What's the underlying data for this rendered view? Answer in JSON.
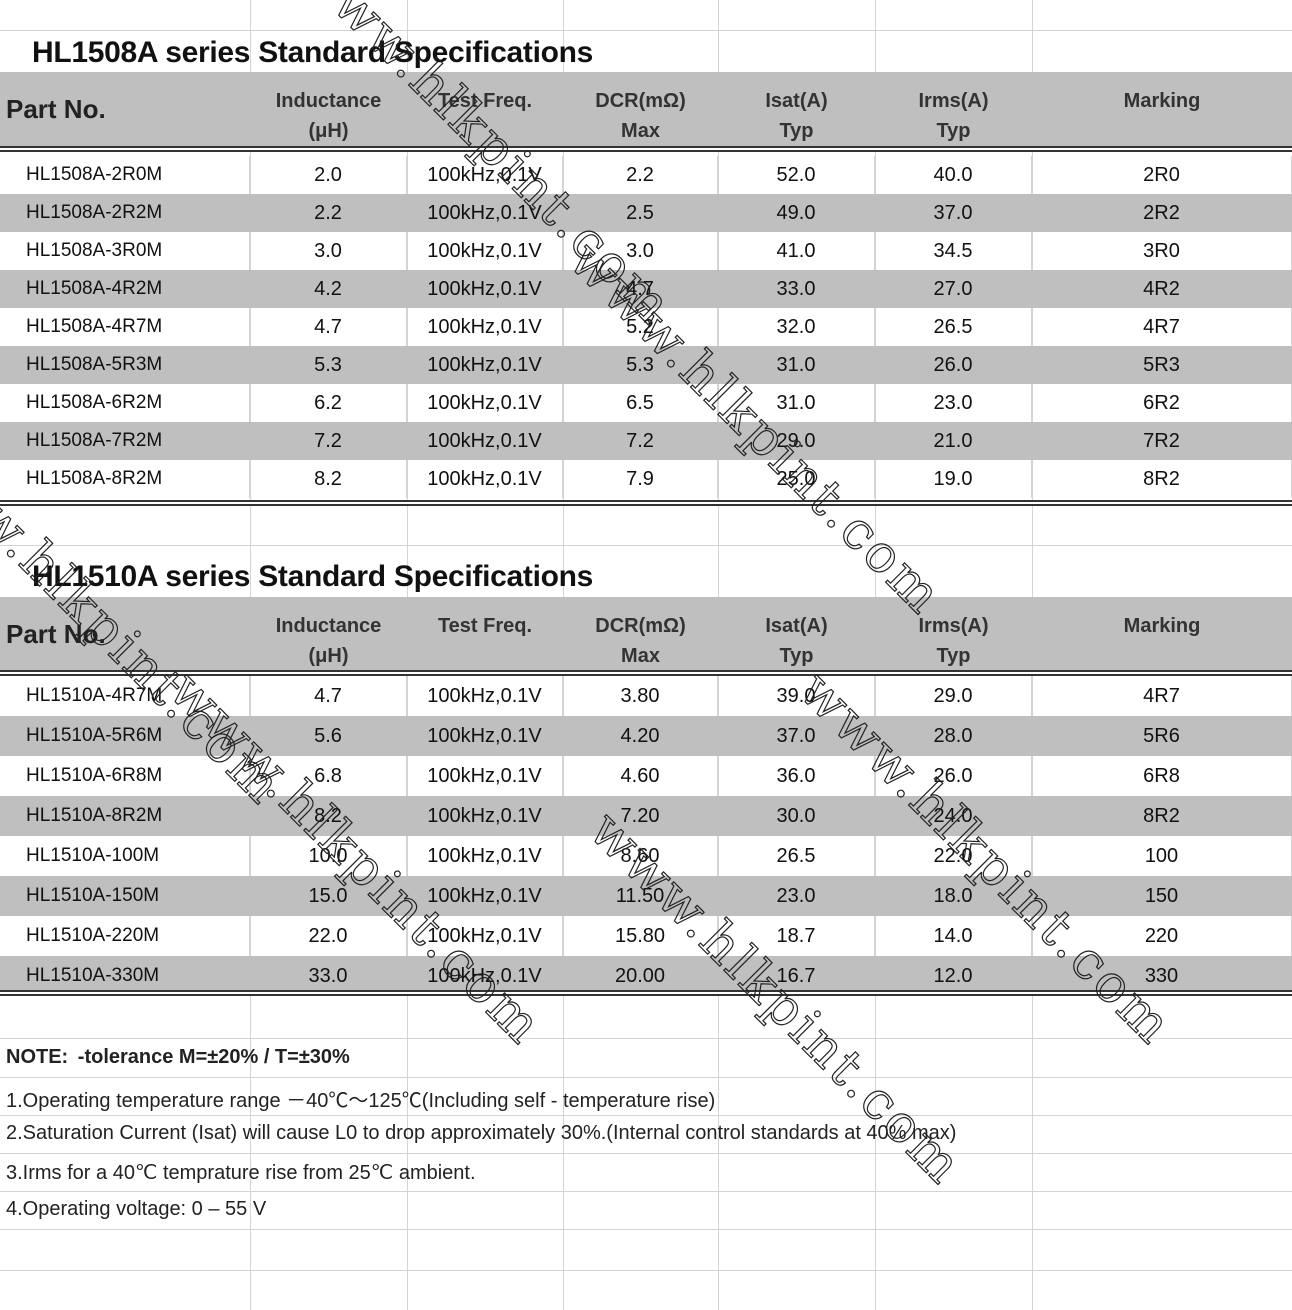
{
  "columns": [
    "Part No.",
    "Inductance\n(μH)",
    "Test Freq.",
    "DCR(mΩ)\nMax",
    "Isat(A)\nTyp",
    "Irms(A)\nTyp",
    "Marking"
  ],
  "tables": [
    {
      "title": "HL1508A series  Standard Specifications",
      "rows": [
        [
          "HL1508A-2R0M",
          "2.0",
          "100kHz,0.1V",
          "2.2",
          "52.0",
          "40.0",
          "2R0"
        ],
        [
          "HL1508A-2R2M",
          "2.2",
          "100kHz,0.1V",
          "2.5",
          "49.0",
          "37.0",
          "2R2"
        ],
        [
          "HL1508A-3R0M",
          "3.0",
          "100kHz,0.1V",
          "3.0",
          "41.0",
          "34.5",
          "3R0"
        ],
        [
          "HL1508A-4R2M",
          "4.2",
          "100kHz,0.1V",
          "4.7",
          "33.0",
          "27.0",
          "4R2"
        ],
        [
          "HL1508A-4R7M",
          "4.7",
          "100kHz,0.1V",
          "5.2",
          "32.0",
          "26.5",
          "4R7"
        ],
        [
          "HL1508A-5R3M",
          "5.3",
          "100kHz,0.1V",
          "5.3",
          "31.0",
          "26.0",
          "5R3"
        ],
        [
          "HL1508A-6R2M",
          "6.2",
          "100kHz,0.1V",
          "6.5",
          "31.0",
          "23.0",
          "6R2"
        ],
        [
          "HL1508A-7R2M",
          "7.2",
          "100kHz,0.1V",
          "7.2",
          "29.0",
          "21.0",
          "7R2"
        ],
        [
          "HL1508A-8R2M",
          "8.2",
          "100kHz,0.1V",
          "7.9",
          "25.0",
          "19.0",
          "8R2"
        ]
      ]
    },
    {
      "title": "HL1510A series  Standard Specifications",
      "rows": [
        [
          "HL1510A-4R7M",
          "4.7",
          "100kHz,0.1V",
          "3.80",
          "39.0",
          "29.0",
          "4R7"
        ],
        [
          "HL1510A-5R6M",
          "5.6",
          "100kHz,0.1V",
          "4.20",
          "37.0",
          "28.0",
          "5R6"
        ],
        [
          "HL1510A-6R8M",
          "6.8",
          "100kHz,0.1V",
          "4.60",
          "36.0",
          "26.0",
          "6R8"
        ],
        [
          "HL1510A-8R2M",
          "8.2",
          "100kHz,0.1V",
          "7.20",
          "30.0",
          "24.0",
          "8R2"
        ],
        [
          "HL1510A-100M",
          "10.0",
          "100kHz,0.1V",
          "8.60",
          "26.5",
          "22.0",
          "100"
        ],
        [
          "HL1510A-150M",
          "15.0",
          "100kHz,0.1V",
          "11.50",
          "23.0",
          "18.0",
          "150"
        ],
        [
          "HL1510A-220M",
          "22.0",
          "100kHz,0.1V",
          "15.80",
          "18.7",
          "14.0",
          "220"
        ],
        [
          "HL1510A-330M",
          "33.0",
          "100kHz,0.1V",
          "20.00",
          "16.7",
          "12.0",
          "330"
        ]
      ]
    }
  ],
  "notes": [
    "NOTE:    -tolerance   M=±20% / T=±30%",
    "1.Operating temperature range －40℃～125℃(Including self - temperature rise)",
    "2.Saturation Current (Isat) will cause L0 to drop approximately 30%.(Internal control standards at 40% max)",
    "3.Irms for a 40℃ temprature rise from 25℃ ambient.",
    "4.Operating voltage: 0 – 55 V"
  ],
  "watermark": "www.hlkpint.com",
  "colors": {
    "header_bg": "#bfbfbf",
    "stripe_bg": "#bfbfbf",
    "grid": "#d4d4d4"
  }
}
